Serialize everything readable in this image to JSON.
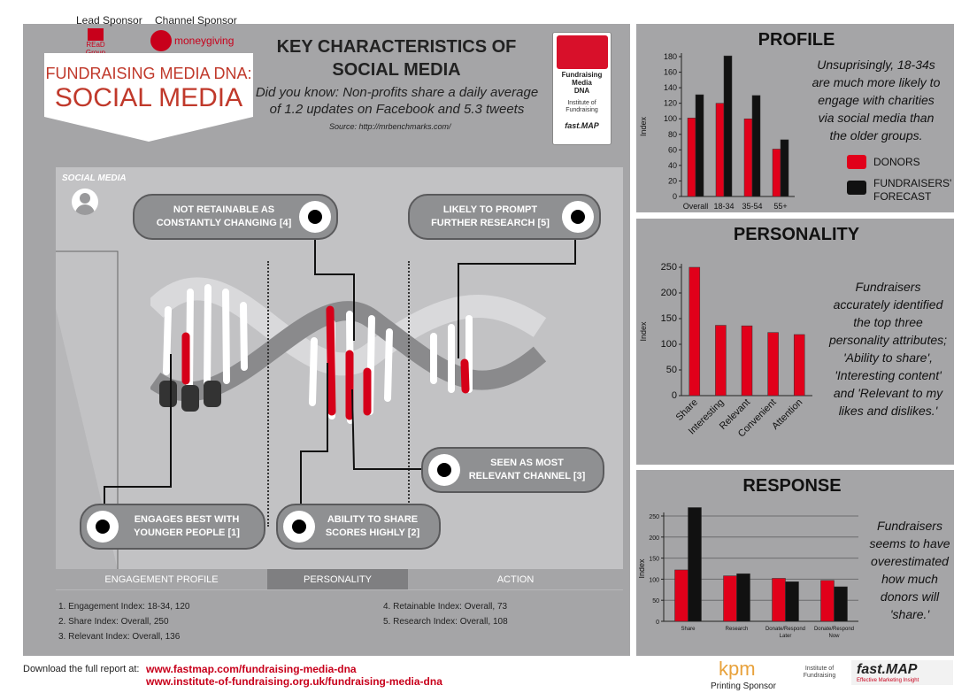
{
  "sponsors": {
    "lead_label": "Lead Sponsor",
    "lead_name": "REaD Group",
    "channel_label": "Channel Sponsor",
    "channel_name": "moneygiving"
  },
  "title": {
    "line1": "FUNDRAISING MEDIA DNA:",
    "line2": "SOCIAL MEDIA"
  },
  "header": {
    "heading_line1": "KEY CHARACTERISTICS OF",
    "heading_line2": "SOCIAL MEDIA",
    "did_you_know_line1": "Did you know: Non-profits share a daily average",
    "did_you_know_line2": "of 1.2 updates on Facebook and 5.3 tweets",
    "source": "Source: http://mrbenchmarks.com/"
  },
  "badge": {
    "line1": "Fundraising",
    "line2": "Media",
    "line3": "DNA",
    "org": "Institute of Fundraising",
    "brand": "fast.MAP"
  },
  "dna_panel": {
    "label": "SOCIAL MEDIA",
    "callouts": [
      {
        "line1": "NOT RETAINABLE AS",
        "line2": "CONSTANTLY CHANGING [4]"
      },
      {
        "line1": "LIKELY TO PROMPT",
        "line2": "FURTHER RESEARCH [5]"
      },
      {
        "line1": "SEEN AS MOST",
        "line2": "RELEVANT CHANNEL [3]"
      },
      {
        "line1": "ENGAGES BEST WITH",
        "line2": "YOUNGER PEOPLE [1]"
      },
      {
        "line1": "ABILITY TO SHARE",
        "line2": "SCORES HIGHLY [2]"
      }
    ],
    "tabs": [
      "ENGAGEMENT PROFILE",
      "PERSONALITY",
      "ACTION"
    ]
  },
  "notes_left": [
    "1. Engagement Index: 18-34, 120",
    "2. Share Index: Overall, 250",
    "3. Relevant Index: Overall, 136"
  ],
  "notes_right": [
    "4. Retainable Index: Overall, 73",
    "5. Research Index: Overall, 108"
  ],
  "footer": {
    "download_label": "Download the full report at:",
    "link1": "www.fastmap.com/fundraising-media-dna",
    "link2": "www.institute-of-fundraising.org.uk/fundraising-media-dna",
    "kpm": "kpm",
    "printing_label": "Printing Sponsor",
    "iof": "Institute of Fundraising",
    "fastmap": "fast.MAP",
    "fastmap_tag": "Effective Marketing Insight"
  },
  "profile": {
    "heading": "PROFILE",
    "text": [
      "Unsuprisingly, 18-34s",
      "are much more likely to",
      "engage with charities",
      "via social media than",
      "the older groups."
    ],
    "legend_donors": "DONORS",
    "legend_fundraisers_line1": "FUNDRAISERS'",
    "legend_fundraisers_line2": "FORECAST"
  },
  "personality": {
    "heading": "PERSONALITY",
    "text": [
      "Fundraisers",
      "accurately identified",
      "the top three",
      "personality attributes;",
      "'Ability to share',",
      "'Interesting content'",
      "and 'Relevant to my",
      "likes and dislikes.'"
    ]
  },
  "response": {
    "heading": "RESPONSE",
    "text": [
      "Fundraisers",
      "seems to have",
      "overestimated",
      "how much",
      "donors will",
      "'share.'"
    ]
  },
  "colors": {
    "red": "#e1001a",
    "black": "#111111",
    "panel": "#a5a5a7",
    "title_red": "#c0392b"
  },
  "chart_data": [
    {
      "type": "bar",
      "ylabel": "Index",
      "ylim": [
        0,
        180
      ],
      "yticks": [
        0,
        20,
        40,
        60,
        80,
        100,
        120,
        140,
        160,
        180
      ],
      "categories": [
        "Overall",
        "18-34",
        "35-54",
        "55+"
      ],
      "series": [
        {
          "name": "DONORS",
          "values": [
            101,
            120,
            100,
            61
          ]
        },
        {
          "name": "FUNDRAISERS' FORECAST",
          "values": [
            131,
            181,
            130,
            73
          ]
        }
      ]
    },
    {
      "type": "bar",
      "ylabel": "Index",
      "ylim": [
        0,
        250
      ],
      "yticks": [
        0,
        50,
        100,
        150,
        200,
        250
      ],
      "categories": [
        "Share",
        "Interesting",
        "Relevant",
        "Convenient",
        "Attention"
      ],
      "series": [
        {
          "values": [
            250,
            137,
            136,
            123,
            119
          ]
        }
      ]
    },
    {
      "type": "bar",
      "ylabel": "Index",
      "ylim": [
        0,
        250
      ],
      "yticks": [
        0,
        50,
        100,
        150,
        200,
        250
      ],
      "categories": [
        "Share",
        "Research",
        "Donate/Respond Later",
        "Donate/Respond Now"
      ],
      "series": [
        {
          "values": [
            122,
            108,
            102,
            97
          ]
        },
        {
          "values": [
            270,
            113,
            94,
            82
          ]
        }
      ]
    }
  ]
}
